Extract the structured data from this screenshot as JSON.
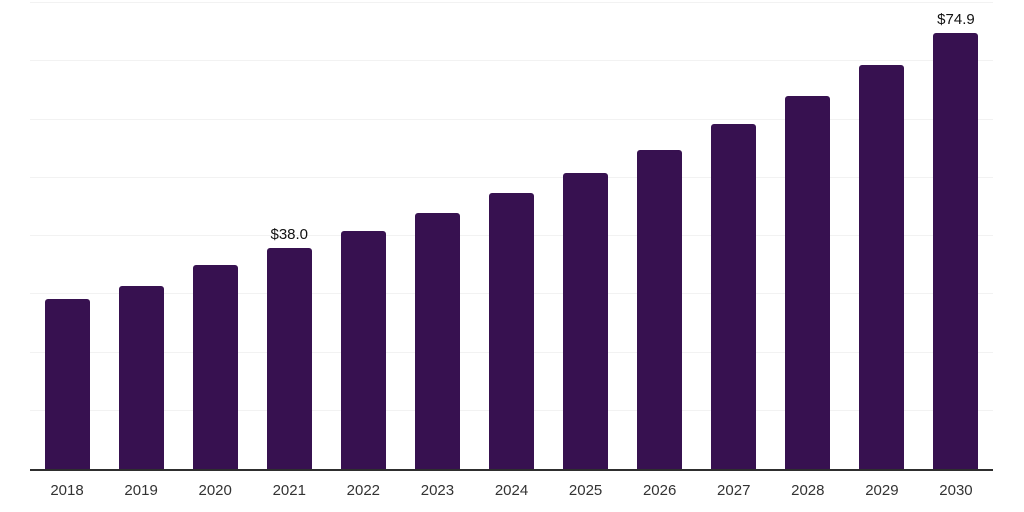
{
  "chart_data": {
    "type": "bar",
    "title": "",
    "xlabel": "",
    "ylabel": "",
    "categories": [
      "2018",
      "2019",
      "2020",
      "2021",
      "2022",
      "2023",
      "2024",
      "2025",
      "2026",
      "2027",
      "2028",
      "2029",
      "2030"
    ],
    "values": [
      29.2,
      31.5,
      35.1,
      38.0,
      40.9,
      43.9,
      47.3,
      50.9,
      54.8,
      59.3,
      64.0,
      69.3,
      74.9
    ],
    "data_labels": [
      "",
      "",
      "",
      "$38.0",
      "",
      "",
      "",
      "",
      "",
      "",
      "",
      "",
      "$74.9"
    ],
    "ylim": [
      0,
      80
    ],
    "grid_step": 10,
    "grid": "horizontal-only",
    "legend_position": "none",
    "colors": {
      "bar": "#371150",
      "axis_line": "#2e2e2e",
      "gridline": "#f2f2f2",
      "tick_label": "#333333",
      "data_label": "#111111",
      "background": "#ffffff"
    }
  }
}
